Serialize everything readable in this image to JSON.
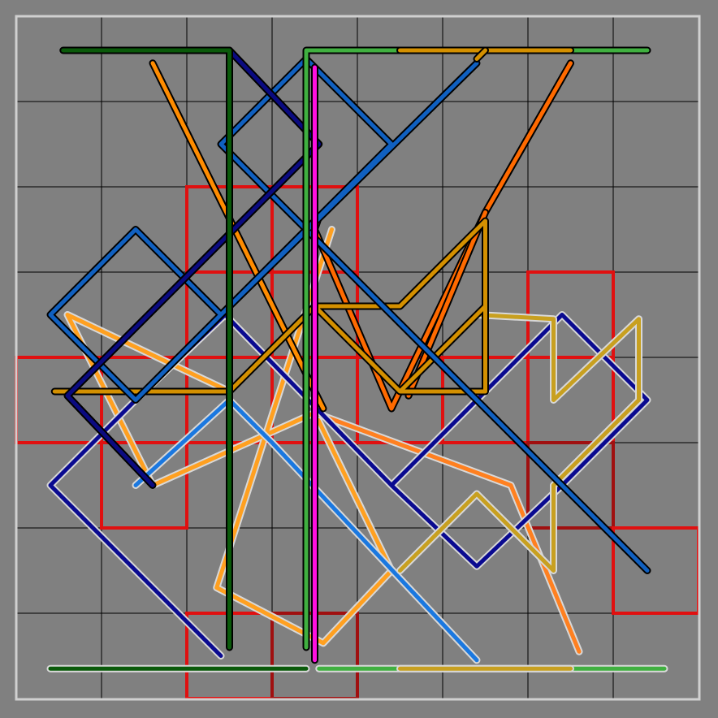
{
  "board": {
    "background_color": "#808080",
    "grid_color": "#000000",
    "frame_color": "#d0d0d0",
    "columns": 8,
    "rows": 8
  },
  "tiles": [
    {
      "col": 2,
      "row": 2,
      "color": "#e01010"
    },
    {
      "col": 3,
      "row": 2,
      "color": "#e01010"
    },
    {
      "col": 2,
      "row": 3,
      "color": "#e01010"
    },
    {
      "col": 3,
      "row": 3,
      "color": "#e01010"
    },
    {
      "col": 6,
      "row": 3,
      "color": "#e01010"
    },
    {
      "col": 0,
      "row": 4,
      "color": "#e01010"
    },
    {
      "col": 1,
      "row": 4,
      "color": "#e01010"
    },
    {
      "col": 2,
      "row": 4,
      "color": "#e01010"
    },
    {
      "col": 3,
      "row": 4,
      "color": "#e01010"
    },
    {
      "col": 4,
      "row": 4,
      "color": "#e01010"
    },
    {
      "col": 5,
      "row": 4,
      "color": "#e01010"
    },
    {
      "col": 6,
      "row": 4,
      "color": "#e01010"
    },
    {
      "col": 1,
      "row": 5,
      "color": "#e01010"
    },
    {
      "col": 6,
      "row": 5,
      "color": "#a01010"
    },
    {
      "col": 7,
      "row": 6,
      "color": "#e01010"
    },
    {
      "col": 2,
      "row": 7,
      "color": "#e01010"
    },
    {
      "col": 3,
      "row": 7,
      "color": "#a01010"
    }
  ],
  "tracks": [
    {
      "name": "light-orange-track",
      "color": "#ffa020",
      "outline": "#d8d8d8",
      "points": [
        [
          3.7,
          2.5
        ],
        [
          2.35,
          6.7
        ],
        [
          3.6,
          7.35
        ],
        [
          4.4,
          6.5
        ],
        [
          3.5,
          4.65
        ],
        [
          1.6,
          5.5
        ],
        [
          0.6,
          3.5
        ],
        [
          2.5,
          4.4
        ]
      ]
    },
    {
      "name": "light-orange-track-2",
      "color": "#ff8020",
      "outline": "#d8d8d8",
      "points": [
        [
          3.5,
          4.65
        ],
        [
          5.8,
          5.5
        ],
        [
          6.6,
          7.45
        ]
      ]
    },
    {
      "name": "light-blue-track",
      "color": "#1a78e0",
      "outline": "#d8d8d8",
      "points": [
        [
          1.4,
          5.5
        ],
        [
          2.5,
          4.5
        ],
        [
          3.0,
          5.0
        ],
        [
          5.4,
          7.55
        ]
      ]
    },
    {
      "name": "light-navy-track",
      "color": "#0a0a90",
      "outline": "#d8d8d8",
      "points": [
        [
          2.4,
          7.5
        ],
        [
          0.4,
          5.5
        ],
        [
          1.4,
          4.5
        ],
        [
          2.45,
          3.5
        ],
        [
          4.4,
          5.5
        ],
        [
          5.4,
          6.45
        ],
        [
          6.4,
          5.5
        ],
        [
          7.4,
          4.5
        ],
        [
          6.4,
          3.5
        ],
        [
          4.4,
          5.5
        ]
      ]
    },
    {
      "name": "light-mustard-track",
      "color": "#c8a020",
      "outline": "#d8d8d8",
      "points": [
        [
          5.4,
          3.5
        ],
        [
          6.3,
          3.55
        ],
        [
          6.3,
          4.5
        ],
        [
          7.3,
          3.55
        ],
        [
          7.3,
          4.5
        ],
        [
          6.3,
          5.5
        ],
        [
          6.3,
          6.5
        ],
        [
          5.4,
          5.6
        ],
        [
          4.5,
          6.5
        ]
      ]
    },
    {
      "name": "light-green-base",
      "color": "#40b040",
      "outline": "#d8d8d8",
      "points": [
        [
          3.55,
          7.65
        ],
        [
          7.6,
          7.65
        ]
      ]
    },
    {
      "name": "light-mustard-base",
      "color": "#c8a020",
      "outline": "#d8d8d8",
      "points": [
        [
          4.5,
          7.65
        ],
        [
          6.5,
          7.65
        ]
      ]
    },
    {
      "name": "light-darkgreen-base",
      "color": "#0a5a0a",
      "outline": "#d8d8d8",
      "points": [
        [
          0.4,
          7.65
        ],
        [
          3.4,
          7.65
        ]
      ]
    },
    {
      "name": "dark-orange-track",
      "color": "#ff8c00",
      "outline": "#000000",
      "points": [
        [
          1.6,
          0.55
        ],
        [
          3.6,
          4.6
        ]
      ]
    },
    {
      "name": "dark-orange-track-2",
      "color": "#ff6a00",
      "outline": "#000000",
      "points": [
        [
          6.5,
          0.55
        ],
        [
          5.5,
          2.3
        ],
        [
          4.4,
          4.6
        ],
        [
          3.5,
          2.5
        ],
        [
          3.55,
          2.35
        ]
      ]
    },
    {
      "name": "dark-orange-track-3",
      "color": "#ff6a00",
      "outline": "#000000",
      "points": [
        [
          5.5,
          2.3
        ],
        [
          4.6,
          4.45
        ]
      ]
    },
    {
      "name": "dark-mustard-track",
      "color": "#d49000",
      "outline": "#000000",
      "points": [
        [
          0.45,
          4.4
        ],
        [
          2.5,
          4.4
        ],
        [
          3.5,
          3.4
        ],
        [
          4.5,
          4.4
        ],
        [
          5.5,
          3.4
        ],
        [
          5.5,
          4.4
        ],
        [
          4.5,
          4.4
        ],
        [
          5.5,
          3.4
        ],
        [
          5.5,
          2.4
        ],
        [
          4.5,
          3.4
        ],
        [
          3.5,
          3.4
        ]
      ]
    },
    {
      "name": "dark-blue-track",
      "color": "#1060c0",
      "outline": "#000000",
      "points": [
        [
          7.4,
          6.5
        ],
        [
          2.4,
          1.5
        ],
        [
          3.4,
          0.5
        ],
        [
          4.4,
          1.5
        ],
        [
          1.4,
          4.5
        ],
        [
          0.4,
          3.5
        ],
        [
          1.4,
          2.5
        ],
        [
          2.4,
          3.5
        ],
        [
          5.4,
          0.55
        ]
      ]
    },
    {
      "name": "dark-navy-track",
      "color": "#0a0a80",
      "outline": "#000000",
      "points": [
        [
          2.5,
          0.4
        ],
        [
          3.55,
          1.5
        ],
        [
          0.6,
          4.45
        ],
        [
          1.6,
          5.5
        ]
      ]
    },
    {
      "name": "dark-green-base",
      "color": "#0a5a0a",
      "outline": "#000000",
      "points": [
        [
          0.55,
          0.4
        ],
        [
          2.5,
          0.4
        ],
        [
          2.5,
          7.4
        ]
      ]
    },
    {
      "name": "dark-lightgreen-base",
      "color": "#40b040",
      "outline": "#000000",
      "points": [
        [
          3.4,
          7.4
        ],
        [
          3.4,
          0.4
        ],
        [
          7.4,
          0.4
        ]
      ]
    },
    {
      "name": "dark-mustard-base",
      "color": "#d49000",
      "outline": "#000000",
      "points": [
        [
          4.5,
          0.4
        ],
        [
          6.5,
          0.4
        ]
      ]
    },
    {
      "name": "dark-mustard-base-2",
      "color": "#d49000",
      "outline": "#000000",
      "points": [
        [
          5.5,
          0.4
        ],
        [
          5.4,
          0.5
        ]
      ]
    },
    {
      "name": "magenta-rail",
      "color": "#ff10e0",
      "outline": "#000000",
      "points": [
        [
          3.5,
          0.6
        ],
        [
          3.5,
          7.55
        ]
      ]
    }
  ]
}
